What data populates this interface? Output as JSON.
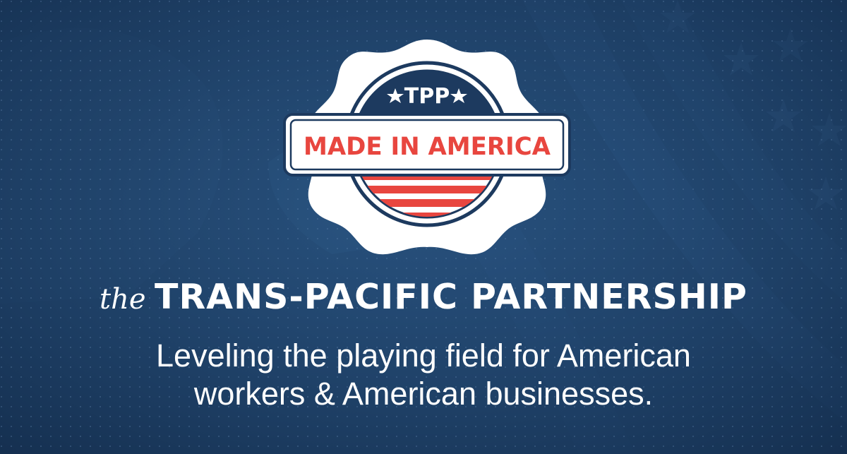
{
  "colors": {
    "background": "#1f4067",
    "badge_red": "#e8463f",
    "badge_navy": "#1d3a5f",
    "white": "#ffffff"
  },
  "badge": {
    "top_text": "TPP",
    "banner_text": "MADE IN AMERICA",
    "star_icon": "star-icon"
  },
  "headline": {
    "prefix": "the",
    "title": "TRANS-PACIFIC PARTNERSHIP"
  },
  "tagline": {
    "line1": "Leveling the playing field for American",
    "line2": "workers & American businesses."
  }
}
